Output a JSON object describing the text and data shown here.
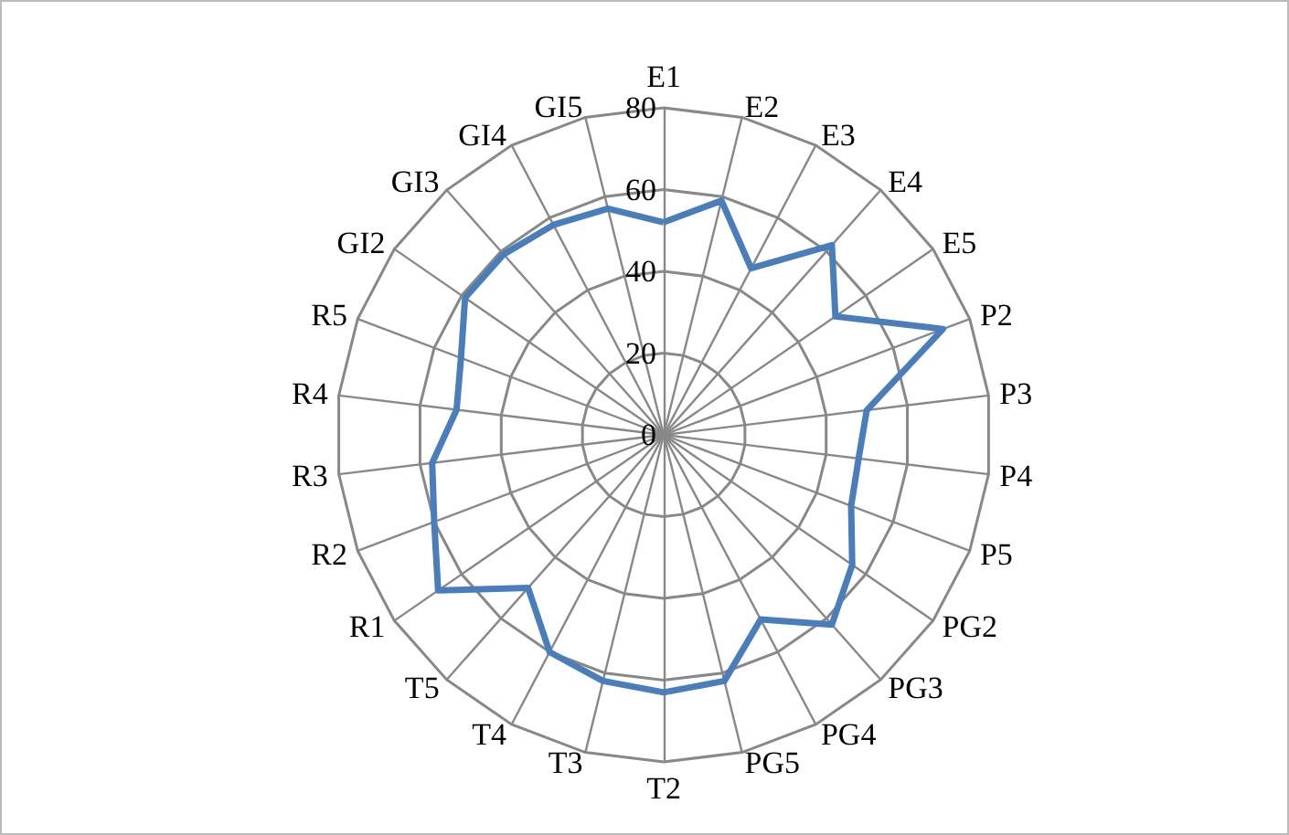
{
  "chart_data": {
    "type": "radar",
    "categories": [
      "E1",
      "E2",
      "E3",
      "E4",
      "E5",
      "P2",
      "P3",
      "P4",
      "P5",
      "PG2",
      "PG3",
      "PG4",
      "PG5",
      "T2",
      "T3",
      "T4",
      "T5",
      "R1",
      "R2",
      "R3",
      "R4",
      "R5",
      "GI2",
      "GI3",
      "GI4",
      "GI5"
    ],
    "series": [
      {
        "color": "#4a7ebb",
        "values": [
          52,
          59,
          46,
          62,
          51,
          73,
          50,
          48,
          49,
          56,
          62,
          51,
          62,
          63,
          62,
          60,
          50,
          67,
          60,
          57,
          51,
          53,
          59,
          59,
          58,
          57
        ]
      }
    ],
    "ylim": [
      0,
      80
    ],
    "yticks": [
      0,
      20,
      40,
      60,
      80
    ],
    "grid": true,
    "marker": "none",
    "line_style": "solid"
  }
}
